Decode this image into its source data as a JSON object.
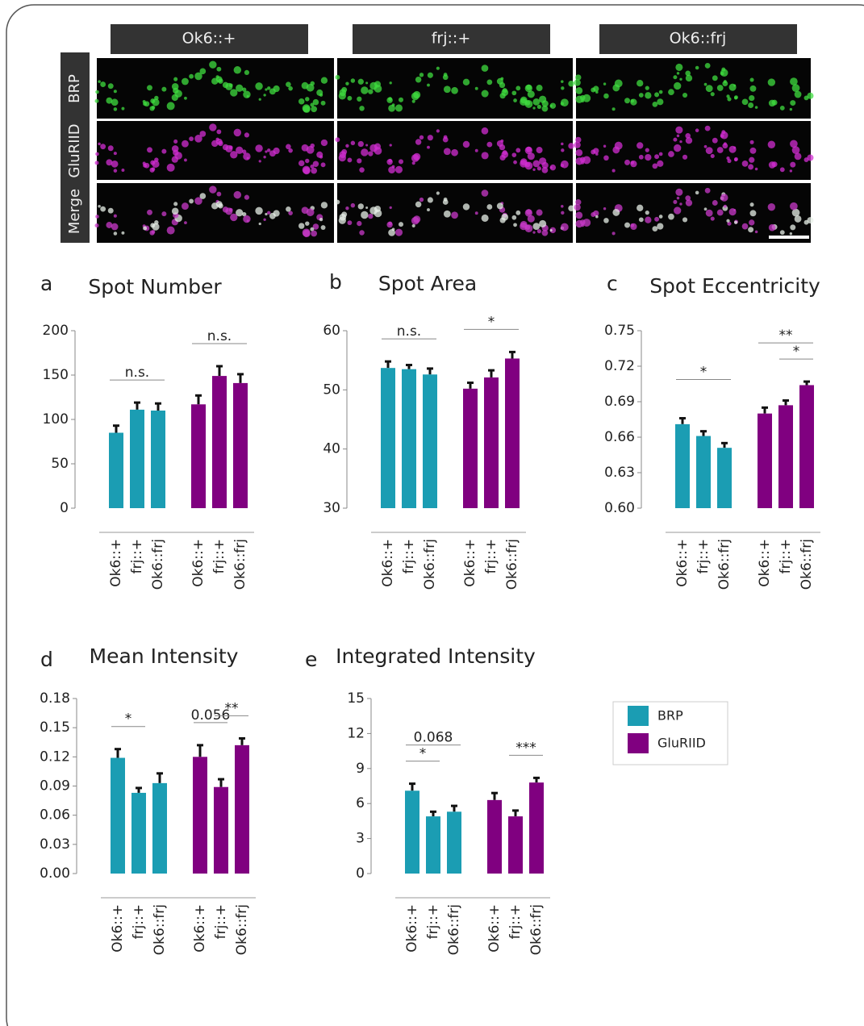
{
  "images": {
    "columns": [
      "Ok6::+",
      "frj::+",
      "Ok6::frj"
    ],
    "rows": [
      "BRP",
      "GluRIID",
      "Merge"
    ]
  },
  "legend": [
    {
      "name": "BRP",
      "color": "#1b9db3"
    },
    {
      "name": "GluRIID",
      "color": "#800080"
    }
  ],
  "chart_data": [
    {
      "type": "bar",
      "panel": "a",
      "title": "Spot Number",
      "categories": [
        "Ok6::+",
        "frj::+",
        "Ok6::frj"
      ],
      "series": [
        {
          "values": [
            85,
            111,
            110
          ],
          "errors": [
            8,
            8,
            8
          ]
        },
        {
          "values": [
            117,
            149,
            141
          ],
          "errors": [
            10,
            11,
            10
          ]
        }
      ],
      "ylim": [
        0,
        200
      ],
      "yticks": [
        0,
        50,
        100,
        150,
        200
      ],
      "annotations": [
        {
          "label": "n.s.",
          "series": 0,
          "from": 0,
          "to": 2,
          "level": 0
        },
        {
          "label": "n.s.",
          "series": 1,
          "from": 0,
          "to": 2,
          "level": 0
        }
      ]
    },
    {
      "type": "bar",
      "panel": "b",
      "title": "Spot Area",
      "categories": [
        "Ok6::+",
        "frj::+",
        "Ok6::frj"
      ],
      "series": [
        {
          "values": [
            53.7,
            53.5,
            52.6
          ],
          "errors": [
            1.1,
            0.7,
            1.0
          ]
        },
        {
          "values": [
            50.2,
            52.1,
            55.3
          ],
          "errors": [
            1.0,
            1.2,
            1.1
          ]
        }
      ],
      "ylim": [
        30,
        60
      ],
      "yticks": [
        30,
        40,
        50,
        60
      ],
      "annotations": [
        {
          "label": "n.s.",
          "series": 0,
          "from": 0,
          "to": 2,
          "level": 0
        },
        {
          "label": "*",
          "series": 1,
          "from": 0,
          "to": 2,
          "level": 0
        }
      ]
    },
    {
      "type": "bar",
      "panel": "c",
      "title": "Spot Eccentricity",
      "categories": [
        "Ok6::+",
        "frj::+",
        "Ok6::frj"
      ],
      "series": [
        {
          "values": [
            0.671,
            0.661,
            0.651
          ],
          "errors": [
            0.005,
            0.004,
            0.004
          ]
        },
        {
          "values": [
            0.68,
            0.687,
            0.704
          ],
          "errors": [
            0.005,
            0.004,
            0.003
          ]
        }
      ],
      "ylim": [
        0.6,
        0.75
      ],
      "yticks": [
        {
          "value": 0.6,
          "label": "0.60"
        },
        0.63,
        0.66,
        0.69,
        0.72,
        0.75
      ],
      "annotations": [
        {
          "label": "*",
          "series": 0,
          "from": 0,
          "to": 2,
          "level": 1
        },
        {
          "label": "**",
          "series": 1,
          "from": 0,
          "to": 2,
          "level": 1
        },
        {
          "label": "*",
          "series": 1,
          "from": 1,
          "to": 2,
          "level": 0
        }
      ]
    },
    {
      "type": "bar",
      "panel": "d",
      "title": "Mean Intensity",
      "categories": [
        "Ok6::+",
        "frj::+",
        "Ok6::frj"
      ],
      "series": [
        {
          "values": [
            0.119,
            0.083,
            0.093
          ],
          "errors": [
            0.009,
            0.005,
            0.01
          ]
        },
        {
          "values": [
            0.12,
            0.089,
            0.132
          ],
          "errors": [
            0.012,
            0.008,
            0.007
          ]
        }
      ],
      "ylim": [
        0,
        0.18
      ],
      "yticks": [
        {
          "value": 0,
          "label": "0.00"
        },
        0.03,
        0.06,
        0.09,
        0.12,
        0.15,
        0.18
      ],
      "annotations": [
        {
          "label": "*",
          "series": 0,
          "from": 0,
          "to": 1,
          "level": 0
        },
        {
          "label": "0.056",
          "series": 1,
          "from": 0,
          "to": 1,
          "level": 0
        },
        {
          "label": "**",
          "series": 1,
          "from": 1,
          "to": 2,
          "level": 0
        }
      ]
    },
    {
      "type": "bar",
      "panel": "e",
      "title": "Integrated Intensity",
      "categories": [
        "Ok6::+",
        "frj::+",
        "Ok6::frj"
      ],
      "series": [
        {
          "values": [
            7.1,
            4.9,
            5.3
          ],
          "errors": [
            0.6,
            0.4,
            0.5
          ]
        },
        {
          "values": [
            6.3,
            4.9,
            7.8
          ],
          "errors": [
            0.6,
            0.5,
            0.4
          ]
        }
      ],
      "ylim": [
        0,
        15
      ],
      "yticks": [
        0,
        3,
        6,
        9,
        12,
        15
      ],
      "annotations": [
        {
          "label": "0.068",
          "series": 0,
          "from": 0,
          "to": 2,
          "level": 1
        },
        {
          "label": "*",
          "series": 0,
          "from": 0,
          "to": 1,
          "level": 0
        },
        {
          "label": "***",
          "series": 1,
          "from": 1,
          "to": 2,
          "level": 0
        }
      ]
    }
  ]
}
